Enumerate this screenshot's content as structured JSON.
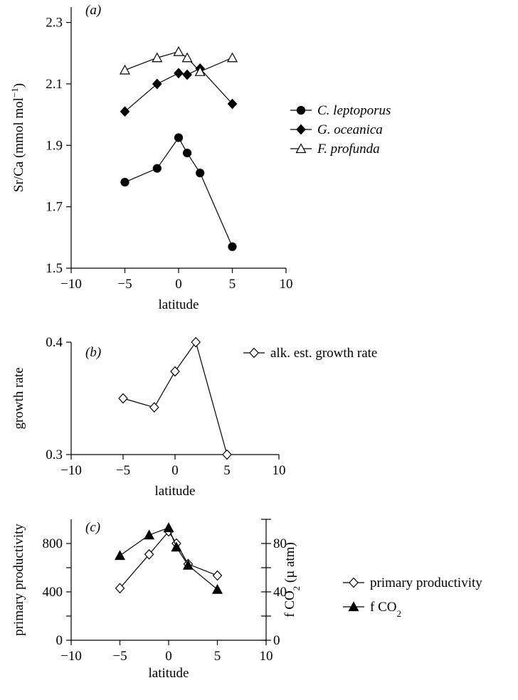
{
  "chart_data": [
    {
      "panel": "(a)",
      "type": "line",
      "xlabel": "latitude",
      "ylabel": "Sr/Ca (mmol mol⁻¹)",
      "xlim": [
        -10,
        10
      ],
      "ylim": [
        1.5,
        2.35
      ],
      "xticks": [
        "−10",
        "−5",
        "0",
        "5",
        "10"
      ],
      "yticks": [
        "1.5",
        "1.7",
        "1.9",
        "2.1",
        "2.3"
      ],
      "legend": "right",
      "series": [
        {
          "name": "C. leptoporus",
          "marker": "filled-circle",
          "x": [
            -5,
            -2,
            0,
            0.8,
            2,
            5
          ],
          "y": [
            1.78,
            1.825,
            1.925,
            1.875,
            1.81,
            1.57
          ]
        },
        {
          "name": "G. oceanica",
          "marker": "filled-diamond",
          "x": [
            -5,
            -2,
            0,
            0.8,
            2,
            5
          ],
          "y": [
            2.01,
            2.1,
            2.135,
            2.13,
            2.15,
            2.035
          ]
        },
        {
          "name": "F. profunda",
          "marker": "open-triangle",
          "x": [
            -5,
            -2,
            0,
            0.8,
            2,
            5
          ],
          "y": [
            2.145,
            2.185,
            2.205,
            2.185,
            2.14,
            2.185
          ]
        }
      ]
    },
    {
      "panel": "(b)",
      "type": "line",
      "xlabel": "latitude",
      "ylabel": "growth rate",
      "xlim": [
        -10,
        10
      ],
      "ylim": [
        0.3,
        0.4
      ],
      "xticks": [
        "−10",
        "−5",
        "0",
        "5",
        "10"
      ],
      "yticks": [
        "0.3",
        "0.4"
      ],
      "legend": "right",
      "series": [
        {
          "name": "alk. est. growth rate",
          "marker": "open-diamond",
          "x": [
            -5,
            -2,
            0,
            2,
            5
          ],
          "y": [
            0.35,
            0.342,
            0.374,
            0.4,
            0.3
          ]
        }
      ]
    },
    {
      "panel": "(c)",
      "type": "line",
      "xlabel": "latitude",
      "ylabel": "primary productivity",
      "ylabel_right": "f CO₂ (µ atm)",
      "xlim": [
        -10,
        10
      ],
      "ylim": [
        0,
        1000
      ],
      "ylim_right": [
        0,
        100
      ],
      "xticks": [
        "−10",
        "−5",
        "0",
        "5",
        "10"
      ],
      "yticks": [
        "0",
        "400",
        "800"
      ],
      "yticks_right": [
        "0",
        "40",
        "80"
      ],
      "legend": "right",
      "series": [
        {
          "name": "primary productivity",
          "marker": "open-diamond",
          "axis": "left",
          "x": [
            -5,
            -2,
            0,
            0.8,
            2,
            5
          ],
          "y": [
            430,
            710,
            900,
            800,
            630,
            535
          ]
        },
        {
          "name": "f CO₂",
          "marker": "filled-triangle",
          "axis": "right",
          "x": [
            -5,
            -2,
            0,
            0.8,
            2,
            5
          ],
          "y": [
            70,
            87,
            93,
            77,
            62,
            42
          ]
        }
      ]
    }
  ]
}
